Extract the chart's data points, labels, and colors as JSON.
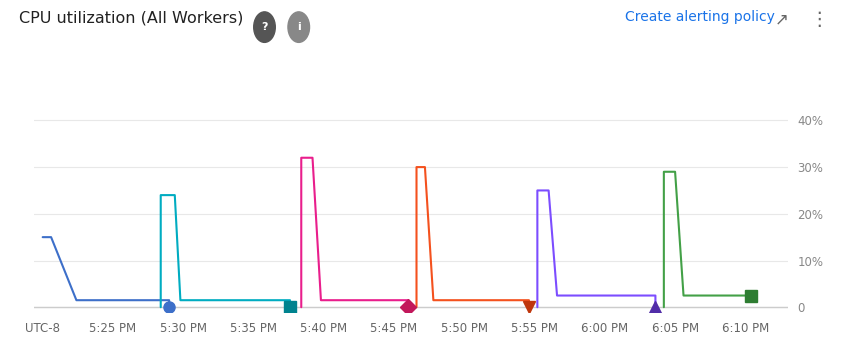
{
  "title": "CPU utilization (All Workers)",
  "right_link": "Create alerting policy",
  "ytick_labels": [
    "0",
    "10%",
    "20%",
    "30%",
    "40%"
  ],
  "yticks": [
    0,
    10,
    20,
    30,
    40
  ],
  "ylim": [
    -1,
    44
  ],
  "xlim": [
    -0.3,
    26.5
  ],
  "background_color": "#ffffff",
  "grid_color": "#e8e8e8",
  "xtick_labels": [
    "UTC-8",
    "5:25 PM",
    "5:30 PM",
    "5:35 PM",
    "5:40 PM",
    "5:45 PM",
    "5:50 PM",
    "5:55 PM",
    "6:00 PM",
    "6:05 PM",
    "6:10 PM"
  ],
  "xtick_positions": [
    0,
    2.5,
    5.0,
    7.5,
    10.0,
    12.5,
    15.0,
    17.5,
    20.0,
    22.5,
    25.0
  ],
  "workers": [
    {
      "x": [
        0.0,
        0.3,
        1.2,
        4.5,
        4.5
      ],
      "y": [
        15,
        15,
        1.5,
        1.5,
        0
      ],
      "color": "#3d6fc9",
      "marker": "o",
      "marker_x": 4.5,
      "marker_y": 0,
      "marker_color": "#3d6fc9",
      "marker_size": 8
    },
    {
      "x": [
        4.2,
        4.2,
        4.7,
        4.9,
        8.8,
        8.8
      ],
      "y": [
        0,
        24,
        24,
        1.5,
        1.5,
        0
      ],
      "color": "#00acc1",
      "marker": "s",
      "marker_x": 8.8,
      "marker_y": 0,
      "marker_color": "#00838f",
      "marker_size": 8
    },
    {
      "x": [
        9.2,
        9.2,
        9.6,
        9.9,
        13.0,
        13.0
      ],
      "y": [
        0,
        32,
        32,
        1.5,
        1.5,
        0
      ],
      "color": "#e91e8c",
      "marker": "D",
      "marker_x": 13.0,
      "marker_y": 0,
      "marker_color": "#c2185b",
      "marker_size": 8
    },
    {
      "x": [
        13.3,
        13.3,
        13.6,
        13.9,
        17.3,
        17.3
      ],
      "y": [
        0,
        30,
        30,
        1.5,
        1.5,
        0
      ],
      "color": "#f4511e",
      "marker": "v",
      "marker_x": 17.3,
      "marker_y": 0,
      "marker_color": "#bf360c",
      "marker_size": 9
    },
    {
      "x": [
        17.6,
        17.6,
        18.0,
        18.3,
        21.8,
        21.8
      ],
      "y": [
        0,
        25,
        25,
        2.5,
        2.5,
        0
      ],
      "color": "#7c4dff",
      "marker": "^",
      "marker_x": 21.8,
      "marker_y": 0,
      "marker_color": "#512da8",
      "marker_size": 9
    },
    {
      "x": [
        22.1,
        22.1,
        22.5,
        22.8,
        25.2
      ],
      "y": [
        0,
        29,
        29,
        2.5,
        2.5
      ],
      "color": "#43a047",
      "marker": "s",
      "marker_x": 25.2,
      "marker_y": 2.5,
      "marker_color": "#2e7d32",
      "marker_size": 8
    }
  ],
  "figsize": [
    8.56,
    3.39
  ],
  "dpi": 100
}
